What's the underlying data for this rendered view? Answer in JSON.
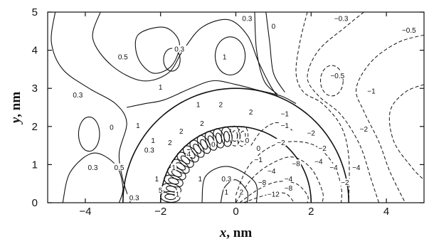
{
  "chart_data": {
    "type": "contour",
    "title": "",
    "xlabel": {
      "var": "x",
      "unit": ", nm"
    },
    "ylabel": {
      "var": "y",
      "unit": ", nm"
    },
    "xlim": [
      -5,
      5
    ],
    "ylim": [
      0,
      5
    ],
    "x_ticks": [
      {
        "value": -4,
        "label": "−4"
      },
      {
        "value": -2,
        "label": "−2"
      },
      {
        "value": 0,
        "label": "0"
      },
      {
        "value": 2,
        "label": "2"
      },
      {
        "value": 4,
        "label": "4"
      }
    ],
    "y_ticks": [
      {
        "value": 0,
        "label": "0"
      },
      {
        "value": 1,
        "label": "1"
      },
      {
        "value": 2,
        "label": "2"
      },
      {
        "value": 3,
        "label": "3"
      },
      {
        "value": 4,
        "label": "4"
      },
      {
        "value": 5,
        "label": "5"
      }
    ],
    "line_styles": {
      "positive": "solid",
      "negative": "dashed"
    },
    "boundaries": [
      {
        "shape": "semicircle",
        "center": [
          0,
          0
        ],
        "radius": 2
      },
      {
        "shape": "semicircle",
        "center": [
          0,
          0
        ],
        "radius": 3
      }
    ],
    "contour_labels": [
      {
        "x": -3.0,
        "y": 3.8,
        "label": "0.5"
      },
      {
        "x": -4.2,
        "y": 2.8,
        "label": "0.3"
      },
      {
        "x": -1.5,
        "y": 4.0,
        "label": "0.3"
      },
      {
        "x": 0.3,
        "y": 4.8,
        "label": "0.3"
      },
      {
        "x": -0.3,
        "y": 3.8,
        "label": "1"
      },
      {
        "x": 1.0,
        "y": 4.6,
        "label": "0"
      },
      {
        "x": 2.8,
        "y": 4.8,
        "label": "−0.3"
      },
      {
        "x": 4.6,
        "y": 4.5,
        "label": "−0.5"
      },
      {
        "x": 2.7,
        "y": 3.3,
        "label": "−0.5"
      },
      {
        "x": 3.6,
        "y": 2.9,
        "label": "−1"
      },
      {
        "x": -2.0,
        "y": 3.0,
        "label": "1"
      },
      {
        "x": -3.3,
        "y": 1.95,
        "label": "0"
      },
      {
        "x": -2.6,
        "y": 2.0,
        "label": "1"
      },
      {
        "x": -2.2,
        "y": 1.6,
        "label": "1"
      },
      {
        "x": -3.8,
        "y": 0.9,
        "label": "0.3"
      },
      {
        "x": -3.1,
        "y": 0.9,
        "label": "0.5"
      },
      {
        "x": -1.0,
        "y": 2.55,
        "label": "1"
      },
      {
        "x": -0.4,
        "y": 2.55,
        "label": "2"
      },
      {
        "x": 0.4,
        "y": 2.35,
        "label": "2"
      },
      {
        "x": -0.9,
        "y": 2.05,
        "label": "2"
      },
      {
        "x": -1.45,
        "y": 1.85,
        "label": "2"
      },
      {
        "x": -1.75,
        "y": 1.55,
        "label": "2"
      },
      {
        "x": -1.25,
        "y": 1.25,
        "label": "4"
      },
      {
        "x": -2.3,
        "y": 1.35,
        "label": "0.3"
      },
      {
        "x": -1.65,
        "y": 0.9,
        "label": "1"
      },
      {
        "x": -2.1,
        "y": 0.6,
        "label": "1"
      },
      {
        "x": -2.0,
        "y": 0.3,
        "label": "5"
      },
      {
        "x": -2.7,
        "y": 0.1,
        "label": "0.3"
      },
      {
        "x": -1.55,
        "y": 0.2,
        "label": "1"
      },
      {
        "x": -0.95,
        "y": 0.6,
        "label": "1"
      },
      {
        "x": -0.25,
        "y": 0.6,
        "label": "0.3"
      },
      {
        "x": -0.25,
        "y": 0.25,
        "label": "1"
      },
      {
        "x": 0.15,
        "y": 0.25,
        "label": "2"
      },
      {
        "x": -0.6,
        "y": 1.5,
        "label": "0"
      },
      {
        "x": 0.3,
        "y": 1.6,
        "label": "0"
      },
      {
        "x": 0.6,
        "y": 1.4,
        "label": "0"
      },
      {
        "x": 1.2,
        "y": 1.55,
        "label": "−2"
      },
      {
        "x": 1.3,
        "y": 2.0,
        "label": "−1"
      },
      {
        "x": 1.3,
        "y": 2.3,
        "label": "−1"
      },
      {
        "x": 2.0,
        "y": 1.8,
        "label": "−2"
      },
      {
        "x": 2.3,
        "y": 1.4,
        "label": "−2"
      },
      {
        "x": 3.4,
        "y": 1.9,
        "label": "−2"
      },
      {
        "x": 0.6,
        "y": 1.1,
        "label": "−1"
      },
      {
        "x": 0.95,
        "y": 0.8,
        "label": "−4"
      },
      {
        "x": 1.4,
        "y": 0.6,
        "label": "−4"
      },
      {
        "x": 1.6,
        "y": 1.0,
        "label": "−8"
      },
      {
        "x": 2.2,
        "y": 1.05,
        "label": "−4"
      },
      {
        "x": 0.7,
        "y": 0.5,
        "label": "−8"
      },
      {
        "x": 1.4,
        "y": 0.35,
        "label": "−8"
      },
      {
        "x": 1.0,
        "y": 0.2,
        "label": "−12"
      },
      {
        "x": 2.6,
        "y": 0.9,
        "label": "−4"
      },
      {
        "x": 3.2,
        "y": 0.9,
        "label": "−4"
      },
      {
        "x": 2.9,
        "y": 0.5,
        "label": "−2"
      }
    ]
  }
}
